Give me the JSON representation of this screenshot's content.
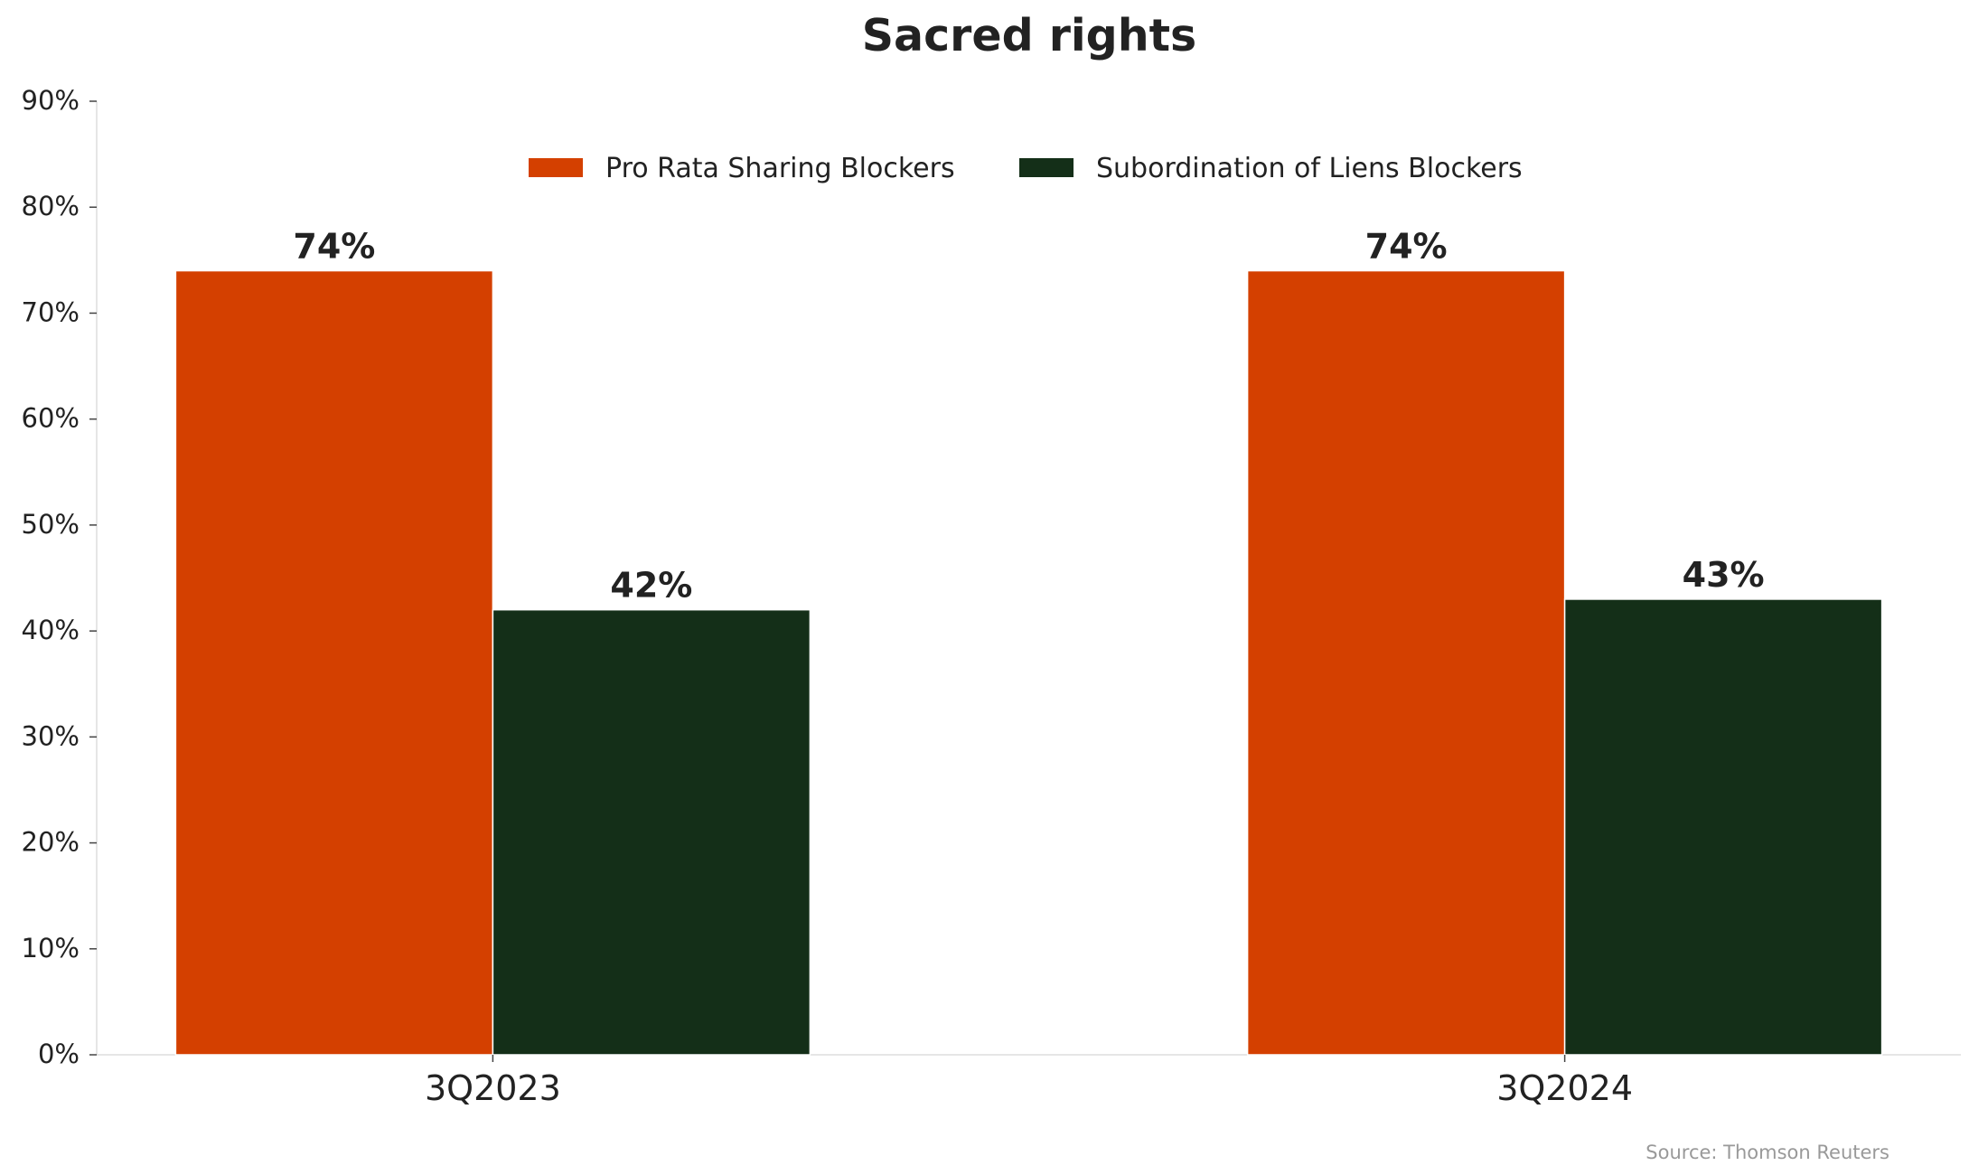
{
  "chart_data": {
    "type": "bar",
    "title": "Sacred rights",
    "categories": [
      "3Q2023",
      "3Q2024"
    ],
    "series": [
      {
        "name": "Pro Rata Sharing Blockers",
        "values": [
          74,
          74
        ],
        "labels": [
          "74%",
          "74%"
        ],
        "color": "#D44000"
      },
      {
        "name": "Subordination of Liens Blockers",
        "values": [
          42,
          43
        ],
        "labels": [
          "42%",
          "43%"
        ],
        "color": "#142F18"
      }
    ],
    "ylim": [
      0,
      90
    ],
    "yticks": [
      0,
      10,
      20,
      30,
      40,
      50,
      60,
      70,
      80,
      90
    ],
    "ytick_labels": [
      "0%",
      "10%",
      "20%",
      "30%",
      "40%",
      "50%",
      "60%",
      "70%",
      "80%",
      "90%"
    ],
    "xlabel": "",
    "ylabel": "",
    "legend": {
      "placement": "top-center"
    },
    "grid": false,
    "source": "Source: Thomson Reuters"
  }
}
